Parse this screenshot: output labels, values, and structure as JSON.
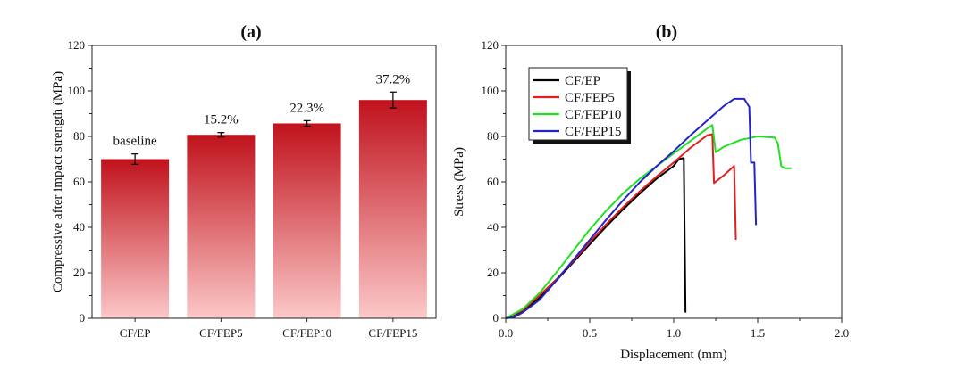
{
  "chart_data": [
    {
      "panel": "(a)",
      "type": "bar",
      "title": "(a)",
      "xlabel": "",
      "ylabel": "Compressive after impact strength (MPa)",
      "ylim": [
        0,
        120
      ],
      "yticks": [
        0,
        20,
        40,
        60,
        80,
        100,
        120
      ],
      "categories": [
        "CF/EP",
        "CF/FEP5",
        "CF/FEP10",
        "CF/FEP15"
      ],
      "values": [
        70,
        80.7,
        85.7,
        96
      ],
      "errors": [
        2.3,
        1.0,
        1.2,
        3.5
      ],
      "annotations": [
        "baseline",
        "15.2%",
        "22.3%",
        "37.2%"
      ],
      "bar_color_top": "#c0121c",
      "bar_color_bottom": "#fcc8c8"
    },
    {
      "panel": "(b)",
      "type": "line",
      "title": "(b)",
      "xlabel": "Displacement (mm)",
      "ylabel": "Stress (MPa)",
      "xlim": [
        0,
        2.0
      ],
      "ylim": [
        0,
        120
      ],
      "xticks": [
        0.0,
        0.5,
        1.0,
        1.5,
        2.0
      ],
      "xtick_labels": [
        "0.0",
        "0.5",
        "1.0",
        "1.5",
        "2.0"
      ],
      "yticks": [
        0,
        20,
        40,
        60,
        80,
        100,
        120
      ],
      "legend_position": "top-left",
      "series": [
        {
          "name": "CF/EP",
          "color": "#000000",
          "points": [
            [
              0,
              0
            ],
            [
              0.1,
              3
            ],
            [
              0.2,
              9
            ],
            [
              0.3,
              16.5
            ],
            [
              0.4,
              24.5
            ],
            [
              0.5,
              32.5
            ],
            [
              0.6,
              40.5
            ],
            [
              0.7,
              48
            ],
            [
              0.8,
              55
            ],
            [
              0.9,
              61.5
            ],
            [
              1.0,
              67
            ],
            [
              1.03,
              70
            ],
            [
              1.06,
              70.5
            ],
            [
              1.07,
              2.5
            ]
          ]
        },
        {
          "name": "CF/FEP5",
          "color": "#e02020",
          "points": [
            [
              0,
              0
            ],
            [
              0.1,
              3.5
            ],
            [
              0.2,
              10
            ],
            [
              0.3,
              17
            ],
            [
              0.4,
              25
            ],
            [
              0.5,
              33.5
            ],
            [
              0.6,
              41.5
            ],
            [
              0.7,
              49
            ],
            [
              0.8,
              56
            ],
            [
              0.9,
              62.5
            ],
            [
              1.0,
              68.5
            ],
            [
              1.1,
              75
            ],
            [
              1.2,
              80.5
            ],
            [
              1.23,
              81
            ],
            [
              1.24,
              59.5
            ],
            [
              1.3,
              63
            ],
            [
              1.36,
              67
            ],
            [
              1.37,
              34.5
            ]
          ]
        },
        {
          "name": "CF/FEP10",
          "color": "#22e022",
          "points": [
            [
              0,
              0
            ],
            [
              0.1,
              4
            ],
            [
              0.2,
              11
            ],
            [
              0.3,
              20
            ],
            [
              0.4,
              29.5
            ],
            [
              0.5,
              39
            ],
            [
              0.6,
              47.5
            ],
            [
              0.7,
              55
            ],
            [
              0.8,
              61.5
            ],
            [
              0.9,
              67
            ],
            [
              1.0,
              72.5
            ],
            [
              1.1,
              78
            ],
            [
              1.2,
              83.5
            ],
            [
              1.23,
              85
            ],
            [
              1.25,
              73
            ],
            [
              1.3,
              75.5
            ],
            [
              1.4,
              78.5
            ],
            [
              1.5,
              80
            ],
            [
              1.6,
              79.5
            ],
            [
              1.62,
              77
            ],
            [
              1.64,
              67
            ],
            [
              1.66,
              66
            ],
            [
              1.7,
              66
            ]
          ]
        },
        {
          "name": "CF/FEP15",
          "color": "#2424c8",
          "points": [
            [
              0,
              0
            ],
            [
              0.05,
              0.5
            ],
            [
              0.1,
              2.5
            ],
            [
              0.2,
              8
            ],
            [
              0.3,
              16.5
            ],
            [
              0.4,
              25.5
            ],
            [
              0.5,
              34.5
            ],
            [
              0.6,
              43.5
            ],
            [
              0.7,
              52
            ],
            [
              0.8,
              60
            ],
            [
              0.9,
              67
            ],
            [
              1.0,
              73.5
            ],
            [
              1.1,
              80.5
            ],
            [
              1.2,
              87
            ],
            [
              1.3,
              93.5
            ],
            [
              1.36,
              96.5
            ],
            [
              1.42,
              96.5
            ],
            [
              1.45,
              93
            ],
            [
              1.46,
              68.5
            ],
            [
              1.48,
              68.5
            ],
            [
              1.49,
              41
            ]
          ]
        }
      ]
    }
  ]
}
